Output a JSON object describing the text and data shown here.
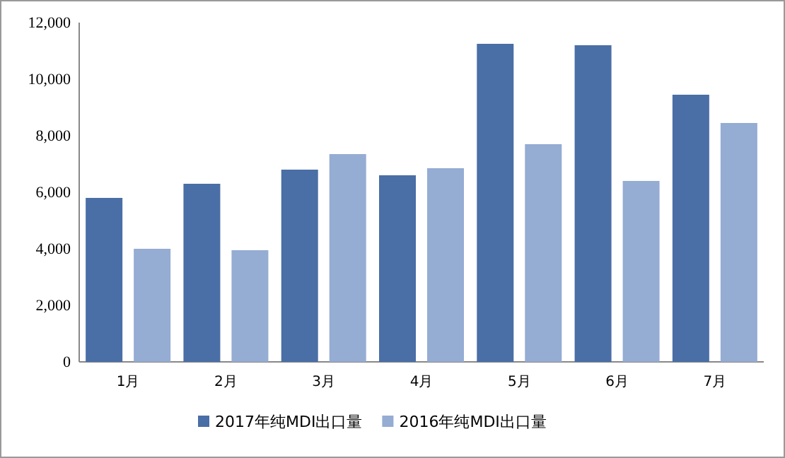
{
  "chart_data": {
    "type": "bar",
    "categories": [
      "1月",
      "2月",
      "3月",
      "4月",
      "5月",
      "6月",
      "7月"
    ],
    "series": [
      {
        "name": "2017年纯MDI出口量",
        "color": "#4a6ea6",
        "values": [
          5800,
          6300,
          6800,
          6600,
          11250,
          11200,
          9450
        ]
      },
      {
        "name": "2016年纯MDI出口量",
        "color": "#95acd3",
        "values": [
          4000,
          3950,
          7350,
          6850,
          7700,
          6400,
          8450
        ]
      }
    ],
    "ylim": [
      0,
      12000
    ],
    "yticks": [
      {
        "value": 0,
        "label": "0"
      },
      {
        "value": 2000,
        "label": "2,000"
      },
      {
        "value": 4000,
        "label": "4,000"
      },
      {
        "value": 6000,
        "label": "6,000"
      },
      {
        "value": 8000,
        "label": "8,000"
      },
      {
        "value": 10000,
        "label": "10,000"
      },
      {
        "value": 12000,
        "label": "12,000"
      }
    ],
    "legend": "bottom"
  }
}
